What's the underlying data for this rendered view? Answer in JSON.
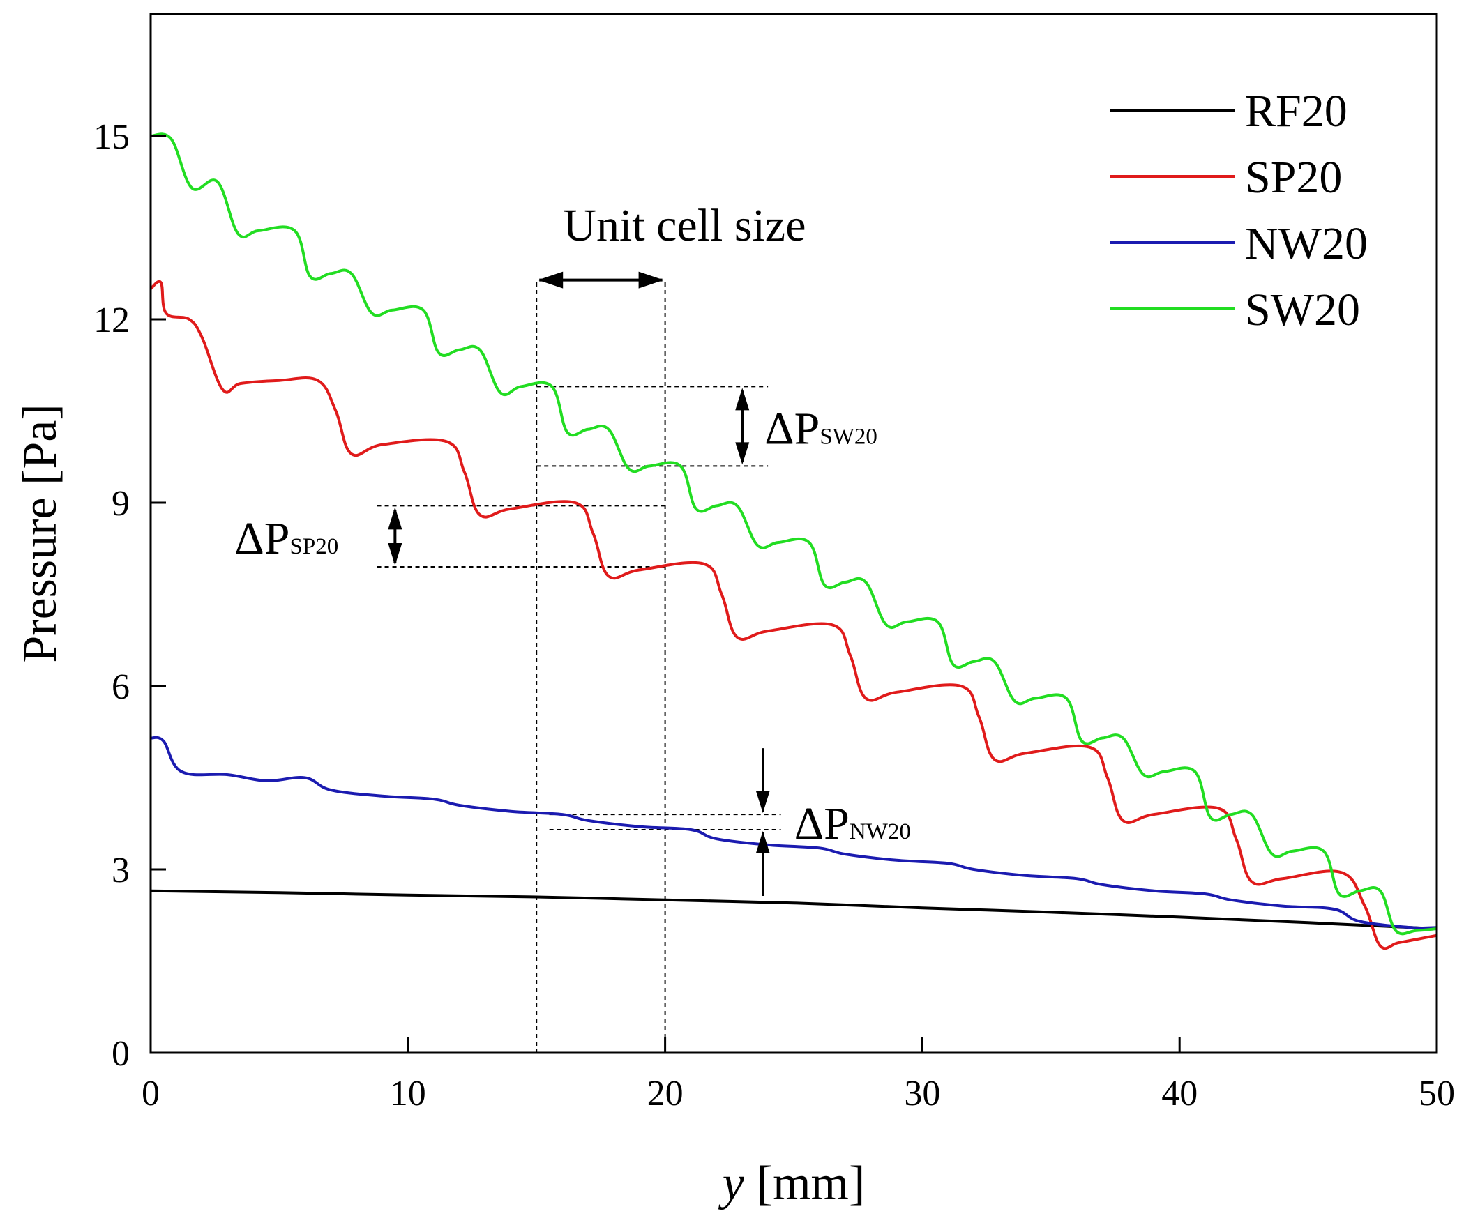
{
  "chart_data": {
    "type": "line",
    "title": "",
    "xlabel_italic": "y",
    "xlabel_unit": "[mm]",
    "ylabel": "Pressure [Pa]",
    "xlim": [
      0,
      50
    ],
    "ylim": [
      0,
      17
    ],
    "xticks": [
      0,
      10,
      20,
      30,
      40,
      50
    ],
    "yticks": [
      0,
      3,
      6,
      9,
      12,
      15
    ],
    "grid": false,
    "legend_position": "top-right",
    "series": [
      {
        "name": "RF20",
        "color": "#000000",
        "x": [
          0,
          5,
          10,
          15,
          20,
          25,
          30,
          35,
          40,
          45,
          49,
          50
        ],
        "y": [
          2.65,
          2.62,
          2.58,
          2.55,
          2.5,
          2.45,
          2.37,
          2.3,
          2.22,
          2.13,
          2.05,
          2.03
        ]
      },
      {
        "name": "SP20",
        "color": "#e01b1b",
        "x": [
          0,
          0.4,
          0.6,
          1.5,
          2.0,
          2.8,
          3.5,
          5,
          6.5,
          7.2,
          7.8,
          9,
          11.5,
          12.2,
          12.8,
          14,
          16.5,
          17.2,
          17.8,
          19,
          21.5,
          22.2,
          22.8,
          24,
          26.5,
          27.2,
          27.8,
          29,
          31.5,
          32.2,
          32.8,
          34,
          36.5,
          37.2,
          37.8,
          39,
          41.5,
          42.2,
          42.8,
          44,
          46.3,
          47.2,
          47.8,
          48.5,
          49.5,
          50
        ],
        "y": [
          12.5,
          12.6,
          12.1,
          12.0,
          11.7,
          10.85,
          10.95,
          11.0,
          11.0,
          10.5,
          9.8,
          9.95,
          10.0,
          9.5,
          8.8,
          8.9,
          9.0,
          8.5,
          7.8,
          7.9,
          8.0,
          7.5,
          6.8,
          6.9,
          7.0,
          6.5,
          5.8,
          5.9,
          6.0,
          5.5,
          4.8,
          4.9,
          5.0,
          4.5,
          3.8,
          3.9,
          4.0,
          3.5,
          2.8,
          2.85,
          2.95,
          2.4,
          1.75,
          1.8,
          1.88,
          1.92
        ]
      },
      {
        "name": "NW20",
        "color": "#1b1bb0",
        "x": [
          0,
          0.5,
          1.2,
          3,
          4.5,
          6,
          7,
          9,
          11,
          12,
          14,
          16,
          17,
          19,
          21,
          22,
          24,
          26,
          27,
          29,
          31,
          32,
          34,
          36,
          37,
          39,
          41,
          42,
          44,
          46,
          47,
          49,
          50
        ],
        "y": [
          5.15,
          5.1,
          4.6,
          4.55,
          4.45,
          4.5,
          4.3,
          4.2,
          4.15,
          4.05,
          3.95,
          3.9,
          3.8,
          3.7,
          3.65,
          3.5,
          3.4,
          3.35,
          3.25,
          3.15,
          3.1,
          3.0,
          2.9,
          2.85,
          2.75,
          2.65,
          2.6,
          2.5,
          2.4,
          2.35,
          2.15,
          2.05,
          2.05
        ]
      },
      {
        "name": "SW20",
        "color": "#22dd22",
        "x": [
          0,
          0.8,
          1.6,
          2.6,
          3.4,
          4.2,
          5.6,
          6.2,
          7.0,
          7.8,
          8.6,
          9.4,
          10.6,
          11.2,
          12.0,
          12.8,
          13.6,
          14.4,
          15.6,
          16.2,
          17.0,
          17.8,
          18.6,
          19.4,
          20.6,
          21.2,
          22.0,
          22.8,
          23.6,
          24.4,
          25.6,
          26.2,
          27.0,
          27.8,
          28.6,
          29.4,
          30.6,
          31.2,
          32.0,
          32.8,
          33.6,
          34.4,
          35.6,
          36.2,
          37.0,
          37.8,
          38.6,
          39.4,
          40.6,
          41.2,
          42.0,
          42.8,
          43.6,
          44.4,
          45.6,
          46.2,
          47.0,
          47.8,
          48.4,
          49.2,
          50
        ],
        "y": [
          15.0,
          14.95,
          14.15,
          14.25,
          13.4,
          13.45,
          13.45,
          12.7,
          12.75,
          12.75,
          12.1,
          12.15,
          12.15,
          11.45,
          11.5,
          11.5,
          10.8,
          10.9,
          10.9,
          10.15,
          10.2,
          10.2,
          9.55,
          9.6,
          9.6,
          8.9,
          8.95,
          8.95,
          8.3,
          8.35,
          8.35,
          7.65,
          7.7,
          7.7,
          7.0,
          7.05,
          7.05,
          6.35,
          6.4,
          6.4,
          5.75,
          5.8,
          5.8,
          5.1,
          5.15,
          5.15,
          4.55,
          4.6,
          4.6,
          3.85,
          3.9,
          3.9,
          3.25,
          3.3,
          3.3,
          2.6,
          2.65,
          2.65,
          2.0,
          2.0,
          2.03
        ]
      }
    ],
    "annotations": {
      "unit_cell_label": "Unit cell size",
      "unit_cell_x": [
        15,
        20
      ],
      "unit_cell_arrow_y": 12.7,
      "dp_sw20": {
        "main": "ΔP",
        "sub": "SW20",
        "y_top": 10.9,
        "y_bottom": 9.6,
        "x": 23.0,
        "line_x": [
          15,
          24
        ]
      },
      "dp_sp20": {
        "main": "ΔP",
        "sub": "SP20",
        "y_top": 8.95,
        "y_bottom": 7.95,
        "x": 9.5,
        "line_x": [
          8.8,
          20
        ]
      },
      "dp_nw20": {
        "main": "ΔP",
        "sub": "NW20",
        "y_top": 3.9,
        "y_bottom": 3.65,
        "x": 23.8,
        "line_x": [
          15.5,
          24.5
        ]
      }
    }
  }
}
